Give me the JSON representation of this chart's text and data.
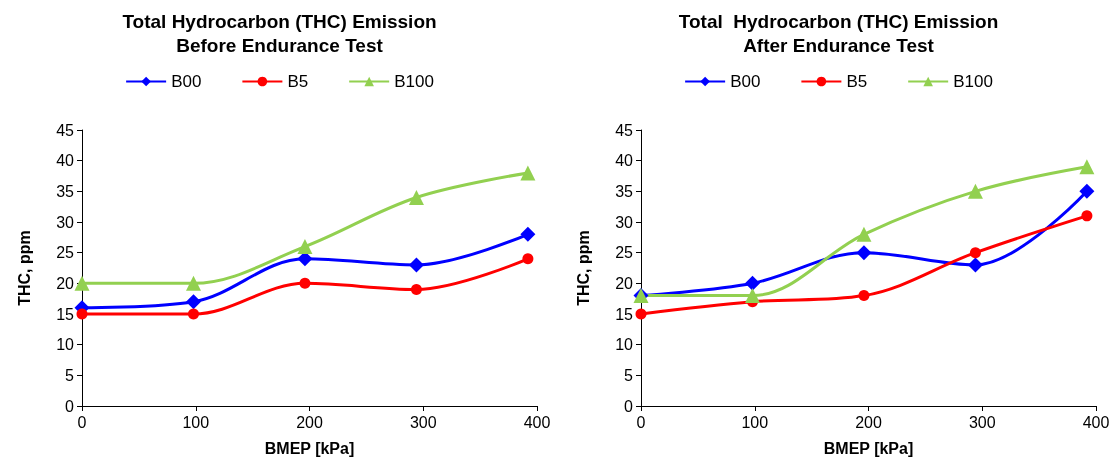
{
  "chart_data": [
    {
      "type": "line",
      "title": "Total Hydrocarbon (THC) Emission\nBefore Endurance Test",
      "xlabel": "BMEP [kPa]",
      "ylabel": "THC, ppm",
      "x": [
        0,
        98,
        196,
        294,
        392
      ],
      "xlim": [
        0,
        400
      ],
      "xticks": [
        0,
        100,
        200,
        300,
        400
      ],
      "ylim": [
        0,
        45
      ],
      "yticks": [
        0,
        5,
        10,
        15,
        20,
        25,
        30,
        35,
        40,
        45
      ],
      "grid": false,
      "legend": "top",
      "series": [
        {
          "name": "B00",
          "color": "#0000ff",
          "marker": "diamond",
          "values": [
            16,
            17,
            24,
            23,
            28
          ]
        },
        {
          "name": "B5",
          "color": "#ff0000",
          "marker": "circle",
          "values": [
            15,
            15,
            20,
            19,
            24
          ]
        },
        {
          "name": "B100",
          "color": "#92d050",
          "marker": "triangle",
          "values": [
            20,
            20,
            26,
            34,
            38
          ]
        }
      ]
    },
    {
      "type": "line",
      "title": "Total  Hydrocarbon (THC) Emission\nAfter Endurance Test",
      "xlabel": "BMEP [kPa]",
      "ylabel": "THC, ppm",
      "x": [
        0,
        98,
        196,
        294,
        392
      ],
      "xlim": [
        0,
        400
      ],
      "xticks": [
        0,
        100,
        200,
        300,
        400
      ],
      "ylim": [
        0,
        45
      ],
      "yticks": [
        0,
        5,
        10,
        15,
        20,
        25,
        30,
        35,
        40,
        45
      ],
      "grid": false,
      "legend": "top",
      "series": [
        {
          "name": "B00",
          "color": "#0000ff",
          "marker": "diamond",
          "values": [
            18,
            20,
            25,
            23,
            35
          ]
        },
        {
          "name": "B5",
          "color": "#ff0000",
          "marker": "circle",
          "values": [
            15,
            17,
            18,
            25,
            31
          ]
        },
        {
          "name": "B100",
          "color": "#92d050",
          "marker": "triangle",
          "values": [
            18,
            18,
            28,
            35,
            39
          ]
        }
      ]
    }
  ]
}
